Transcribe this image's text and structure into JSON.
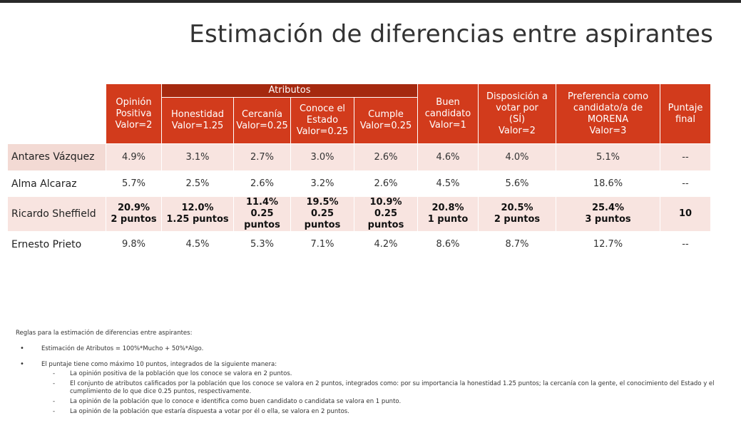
{
  "title": "Estimación de diferencias entre aspirantes",
  "table": {
    "group_label": "Atributos",
    "headers": {
      "opinion": [
        "Opinión",
        "Positiva",
        "Valor=2"
      ],
      "honestidad": [
        "Honestidad",
        "Valor=1.25"
      ],
      "cercania": [
        "Cercanía",
        "Valor=0.25"
      ],
      "conoce": [
        "Conoce el",
        "Estado",
        "Valor=0.25"
      ],
      "cumple": [
        "Cumple",
        "Valor=0.25"
      ],
      "buen": [
        "Buen",
        "candidato",
        "Valor=1"
      ],
      "disposicion": [
        "Disposición a",
        "votar por",
        "(SÍ)",
        "Valor=2"
      ],
      "preferencia": [
        "Preferencia como",
        "candidato/a de",
        "MORENA",
        "Valor=3"
      ],
      "puntaje": [
        "Puntaje",
        "final"
      ]
    },
    "rows": [
      {
        "name": "Antares Vázquez",
        "values": [
          "4.9%",
          "3.1%",
          "2.7%",
          "3.0%",
          "2.6%",
          "4.6%",
          "4.0%",
          "5.1%"
        ],
        "final": "--"
      },
      {
        "name": "Alma Alcaraz",
        "values": [
          "5.7%",
          "2.5%",
          "2.6%",
          "3.2%",
          "2.6%",
          "4.5%",
          "5.6%",
          "18.6%"
        ],
        "final": "--"
      },
      {
        "name": "Ricardo Sheffield",
        "values": [
          "20.9%",
          "12.0%",
          "11.4%",
          "19.5%",
          "10.9%",
          "20.8%",
          "20.5%",
          "25.4%"
        ],
        "points": [
          "2 puntos",
          "1.25 puntos",
          "0.25 puntos",
          "0.25 puntos",
          "0.25 puntos",
          "1 punto",
          "2 puntos",
          "3 puntos"
        ],
        "final": "10"
      },
      {
        "name": "Ernesto Prieto",
        "values": [
          "9.8%",
          "4.5%",
          "5.3%",
          "7.1%",
          "4.2%",
          "8.6%",
          "8.7%",
          "12.7%"
        ],
        "final": "--"
      }
    ]
  },
  "rules": {
    "title": "Reglas para la estimación de diferencias entre aspirantes:",
    "bullet1": "Estimación de Atributos = 100%*Mucho + 50%*Algo.",
    "bullet2": "El puntaje tiene como máximo 10 puntos, integrados de la siguiente manera:",
    "sub1": "La opinión positiva de la población que los conoce se valora en 2 puntos.",
    "sub2": "El conjunto de atributos calificados por la población que los conoce se valora en 2 puntos, integrados como: por su importancia la honestidad 1.25 puntos; la cercanía con la gente, el conocimiento del Estado y el cumplimiento de lo que dice 0.25 puntos, respectivamente.",
    "sub3": "La opinión de la población que lo conoce e identifica como buen candidato o candidata se valora en 1 punto.",
    "sub4": "La opinión de la población que estaría dispuesta a votar por él o ella, se valora en 2 puntos."
  }
}
